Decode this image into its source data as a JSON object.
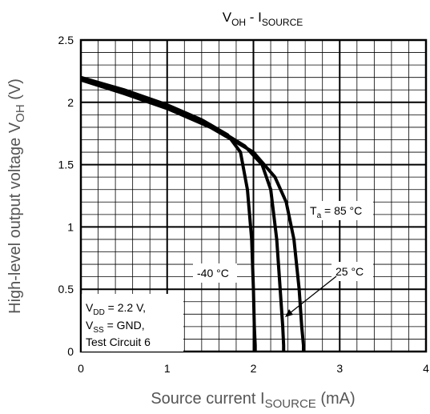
{
  "chart_data": {
    "type": "line",
    "title": {
      "main": "V",
      "main_sub": "OH",
      "sep": " - I",
      "sep_sub": "SOURCE"
    },
    "xlabel": {
      "pre": "Source current  I",
      "sub": "SOURCE",
      "post": "  (mA)"
    },
    "ylabel": {
      "pre": "High-level output voltage  V",
      "sub": "OH",
      "post": "  (V)"
    },
    "xlim": [
      0,
      4
    ],
    "ylim": [
      0,
      2.5
    ],
    "xticks": [
      0,
      1,
      2,
      3,
      4
    ],
    "xtick_labels": [
      "0",
      "1",
      "2",
      "3",
      "4"
    ],
    "yticks": [
      0,
      0.5,
      1,
      1.5,
      2,
      2.5
    ],
    "ytick_labels": [
      "0",
      "0.5",
      "1",
      "1.5",
      "2",
      "2.5"
    ],
    "grid": true,
    "minor_divisions": 5,
    "series": [
      {
        "name": "-40 °C",
        "x": [
          0,
          0.5,
          1.0,
          1.4,
          1.7,
          1.85,
          1.93,
          1.98,
          2.0,
          2.01,
          2.02,
          2.02
        ],
        "y": [
          2.2,
          2.1,
          1.98,
          1.86,
          1.74,
          1.6,
          1.3,
          0.9,
          0.5,
          0.2,
          0.05,
          0
        ]
      },
      {
        "name": "25 °C",
        "x": [
          0,
          0.5,
          1.0,
          1.5,
          1.9,
          2.1,
          2.2,
          2.27,
          2.31,
          2.34,
          2.35,
          2.35
        ],
        "y": [
          2.19,
          2.09,
          1.97,
          1.82,
          1.65,
          1.5,
          1.3,
          0.9,
          0.5,
          0.2,
          0.05,
          0
        ]
      },
      {
        "name": "Ta = 85 °C",
        "x": [
          0,
          0.5,
          1.0,
          1.5,
          2.0,
          2.25,
          2.38,
          2.47,
          2.53,
          2.56,
          2.58,
          2.58
        ],
        "y": [
          2.18,
          2.07,
          1.95,
          1.8,
          1.6,
          1.4,
          1.2,
          0.9,
          0.5,
          0.2,
          0.05,
          0
        ]
      }
    ],
    "annotations": {
      "ta85": {
        "pre": "T",
        "sub": "a",
        "post": " = 85 °C"
      },
      "t25": "25 °C",
      "tm40": "-40 °C"
    },
    "conditions": {
      "line1": {
        "pre": "V",
        "sub": "DD",
        "post": " = 2.2 V,"
      },
      "line2": {
        "pre": "V",
        "sub": "SS",
        "post": " = GND,"
      },
      "line3": "Test Circuit 6"
    }
  }
}
